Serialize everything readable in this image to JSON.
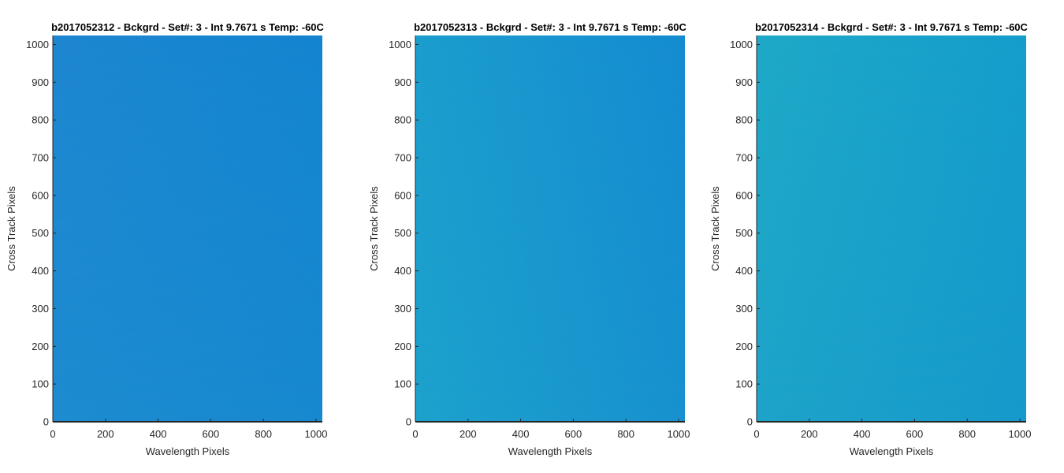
{
  "chart_data": [
    {
      "type": "heatmap",
      "title": "b2017052312 - Bckgrd - Set#: 3 - Int 9.7671 s Temp: -60C",
      "xlabel": "Wavelength Pixels",
      "ylabel": "Cross Track Pixels",
      "xlim": [
        0,
        1024
      ],
      "ylim": [
        0,
        1024
      ],
      "xticks": [
        0,
        200,
        400,
        600,
        800,
        1000
      ],
      "yticks": [
        0,
        100,
        200,
        300,
        400,
        500,
        600,
        700,
        800,
        900,
        1000
      ],
      "color_gradient": {
        "top_left": "#1684d2",
        "top_right": "#0c82d2",
        "bottom_left": "#1689d0",
        "bottom_right": "#0f86d0"
      },
      "grid": false,
      "legend": "none"
    },
    {
      "type": "heatmap",
      "title": "b2017052313 - Bckgrd - Set#: 3 - Int 9.7671 s Temp: -60C",
      "xlabel": "Wavelength Pixels",
      "ylabel": "Cross Track Pixels",
      "xlim": [
        0,
        1024
      ],
      "ylim": [
        0,
        1024
      ],
      "xticks": [
        0,
        200,
        400,
        600,
        800,
        1000
      ],
      "yticks": [
        0,
        100,
        200,
        300,
        400,
        500,
        600,
        700,
        800,
        900,
        1000
      ],
      "color_gradient": {
        "top_left": "#149ccf",
        "top_right": "#0c8ad2",
        "bottom_left": "#15a0cd",
        "bottom_right": "#0f8fcf"
      },
      "grid": false,
      "legend": "none"
    },
    {
      "type": "heatmap",
      "title": "b2017052314 - Bckgrd - Set#: 3 - Int 9.7671 s Temp: -60C",
      "xlabel": "Wavelength Pixels",
      "ylabel": "Cross Track Pixels",
      "xlim": [
        0,
        1024
      ],
      "ylim": [
        0,
        1024
      ],
      "xticks": [
        0,
        200,
        400,
        600,
        800,
        1000
      ],
      "yticks": [
        0,
        100,
        200,
        300,
        400,
        500,
        600,
        700,
        800,
        900,
        1000
      ],
      "color_gradient": {
        "top_left": "#17a8c8",
        "top_right": "#0d9ccd",
        "bottom_left": "#16a2c9",
        "bottom_right": "#0e97cc"
      },
      "grid": false,
      "legend": "none"
    }
  ]
}
